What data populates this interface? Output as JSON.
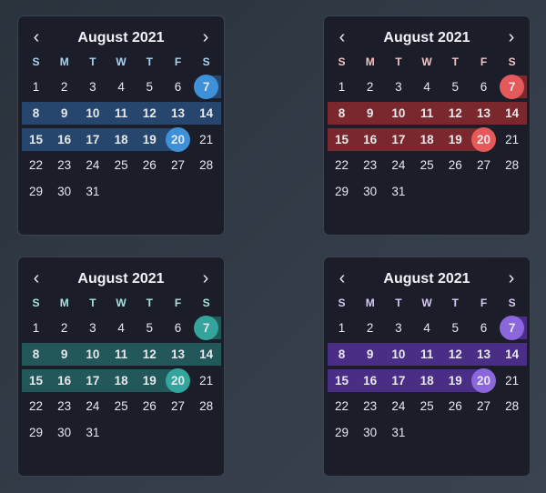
{
  "calendars": [
    {
      "id": "blue",
      "title": "August 2021",
      "weekday_color": "#a9d3f0",
      "band_color": "#27466d",
      "circle_color": "#3e90d8"
    },
    {
      "id": "red",
      "title": "August 2021",
      "weekday_color": "#f2c3c3",
      "band_color": "#7a282d",
      "circle_color": "#e45a5a"
    },
    {
      "id": "teal",
      "title": "August 2021",
      "weekday_color": "#a6e3dc",
      "band_color": "#22585a",
      "circle_color": "#33a59c"
    },
    {
      "id": "purple",
      "title": "August 2021",
      "weekday_color": "#d6c9f4",
      "band_color": "#4a2e85",
      "circle_color": "#8c66dc"
    }
  ],
  "prev_icon": "chevron-left-icon",
  "next_icon": "chevron-right-icon",
  "prev_label": "‹",
  "next_label": "›",
  "weekdays": [
    "S",
    "M",
    "T",
    "W",
    "T",
    "F",
    "S"
  ],
  "days": [
    1,
    2,
    3,
    4,
    5,
    6,
    7,
    8,
    9,
    10,
    11,
    12,
    13,
    14,
    15,
    16,
    17,
    18,
    19,
    20,
    21,
    22,
    23,
    24,
    25,
    26,
    27,
    28,
    29,
    30,
    31
  ],
  "first_weekday_index": 0,
  "range": {
    "start": 7,
    "end": 20
  }
}
